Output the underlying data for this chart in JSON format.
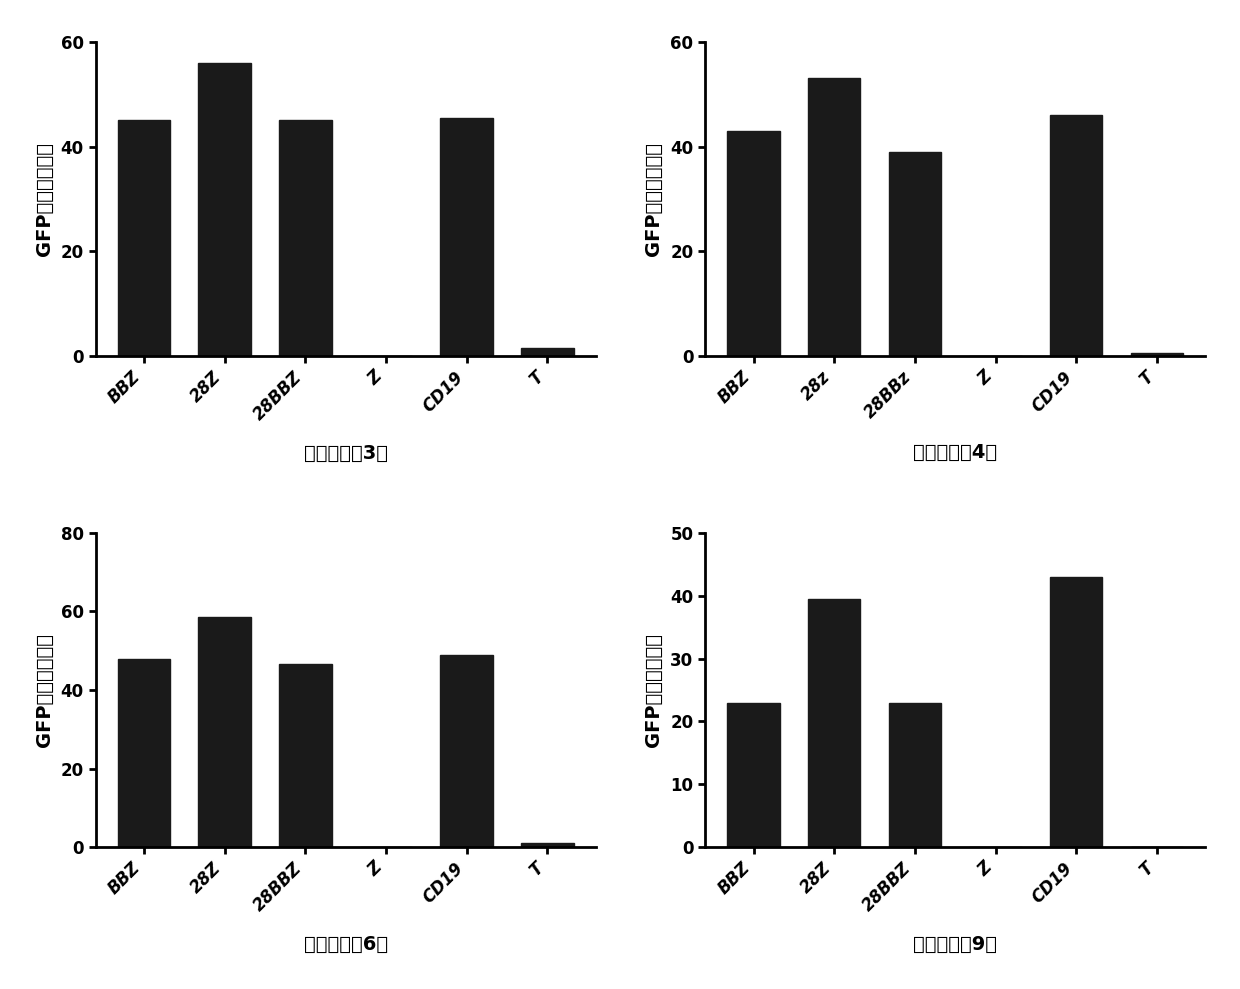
{
  "subplots": [
    {
      "title": "病毒转导后3天",
      "categories": [
        "BBZ",
        "28Z",
        "28BBZ",
        "Z",
        "CD19",
        "T"
      ],
      "values": [
        45,
        56,
        45,
        0,
        45.5,
        1.5
      ],
      "ylim": [
        0,
        60
      ],
      "yticks": [
        0,
        20,
        40,
        60
      ],
      "ylabel": "GFP阳性细胞比例"
    },
    {
      "title": "病毒转导后4天",
      "categories": [
        "BBZ",
        "28z",
        "28BBz",
        "Z",
        "CD19",
        "T"
      ],
      "values": [
        43,
        53,
        39,
        0,
        46,
        0.5
      ],
      "ylim": [
        0,
        60
      ],
      "yticks": [
        0,
        20,
        40,
        60
      ],
      "ylabel": "GFP阳性细胞比例"
    },
    {
      "title": "病毒转导后6天",
      "categories": [
        "BBZ",
        "28Z",
        "28BBZ",
        "Z",
        "CD19",
        "T"
      ],
      "values": [
        48,
        58.5,
        46.5,
        0,
        49,
        1
      ],
      "ylim": [
        0,
        80
      ],
      "yticks": [
        0,
        20,
        40,
        60,
        80
      ],
      "ylabel": "GFP阳性细胞比例"
    },
    {
      "title": "病毒转导后9天",
      "categories": [
        "BBZ",
        "28Z",
        "28BBZ",
        "Z",
        "CD19",
        "T"
      ],
      "values": [
        23,
        39.5,
        23,
        0,
        43,
        0
      ],
      "ylim": [
        0,
        50
      ],
      "yticks": [
        0,
        10,
        20,
        30,
        40,
        50
      ],
      "ylabel": "GFP阳性细胞比例"
    }
  ],
  "bar_color": "#1a1a1a",
  "background_color": "#ffffff",
  "bar_width": 0.65,
  "title_fontsize": 14,
  "label_fontsize": 14,
  "tick_fontsize": 12
}
